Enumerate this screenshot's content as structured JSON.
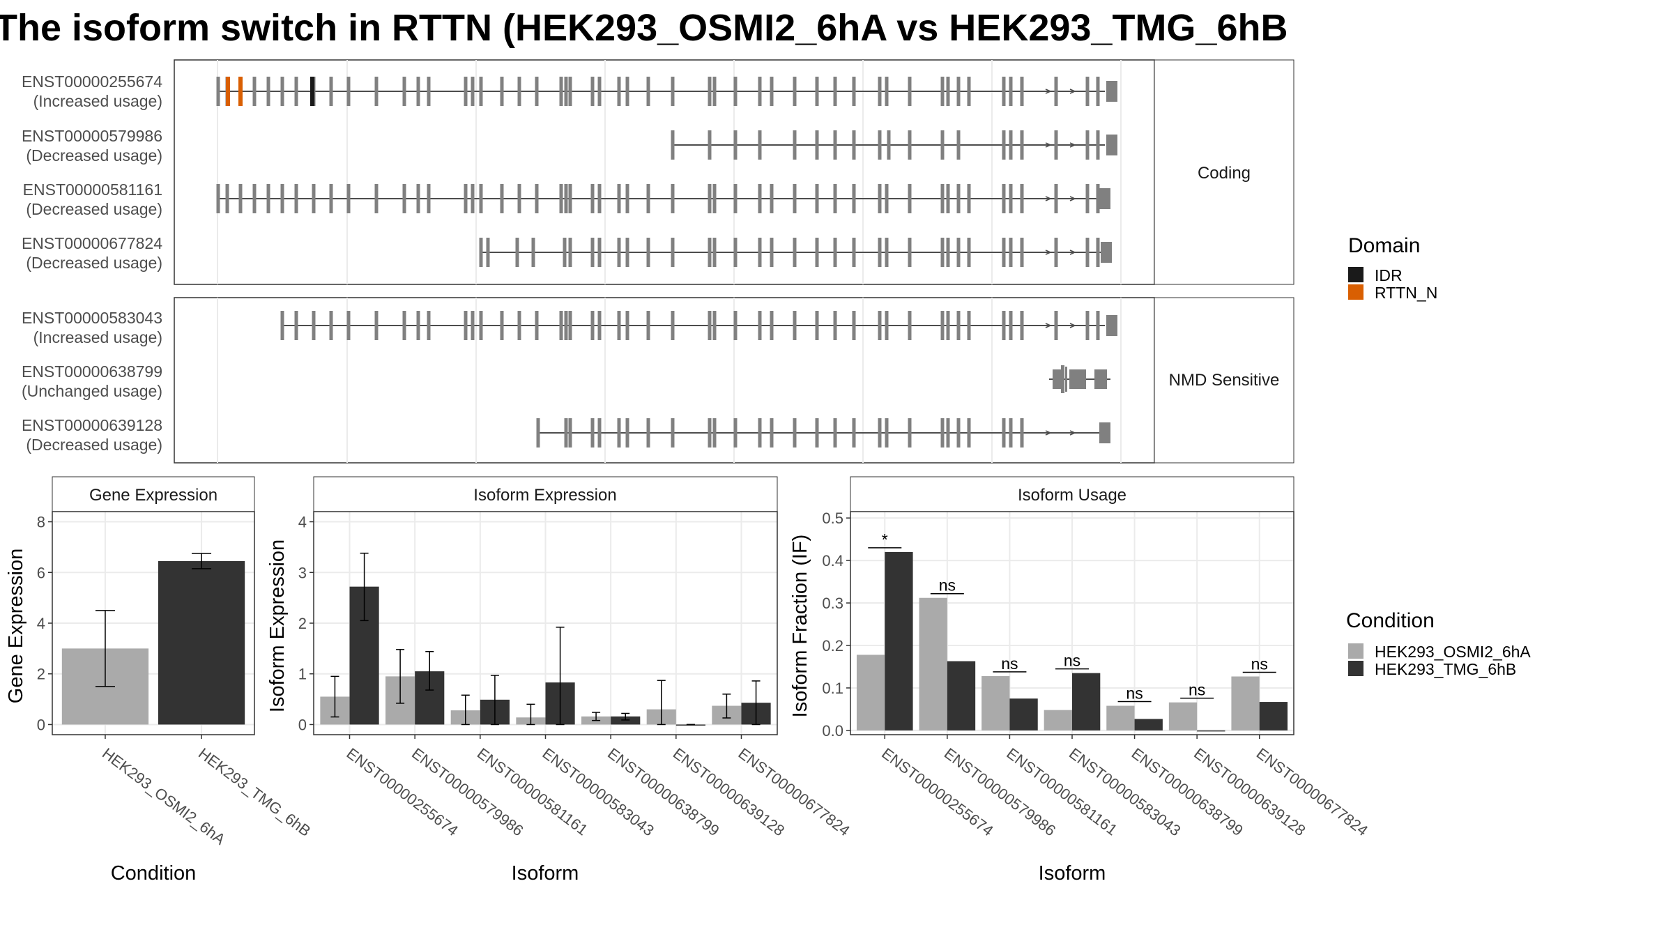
{
  "title": "The isoform switch in RTTN (HEK293_OSMI2_6hA vs HEK293_TMG_6hB",
  "colors": {
    "exon": "#808080",
    "intron": "#4d4d4d",
    "idr": "#1a1a1a",
    "rttn_n": "#d95f02",
    "cond1": "#aaaaaa",
    "cond2": "#333333",
    "panel_border": "#333333",
    "strip_bg": "#ffffff",
    "grid": "#ebebeb"
  },
  "legends": {
    "domain": {
      "title": "Domain",
      "items": [
        {
          "label": "IDR",
          "color": "#1a1a1a"
        },
        {
          "label": "RTTN_N",
          "color": "#d95f02"
        }
      ]
    },
    "condition": {
      "title": "Condition",
      "items": [
        {
          "label": "HEK293_OSMI2_6hA",
          "color": "#aaaaaa"
        },
        {
          "label": "HEK293_TMG_6hB",
          "color": "#333333"
        }
      ]
    }
  },
  "chart_data": [
    {
      "type": "gene-structure",
      "title": "The isoform switch in RTTN (HEK293_OSMI2_6hA vs HEK293_TMG_6hB",
      "groups": [
        {
          "label": "Coding",
          "transcripts": [
            {
              "id": "ENST00000255674",
              "usage": "(Increased usage)"
            },
            {
              "id": "ENST00000579986",
              "usage": "(Decreased usage)"
            },
            {
              "id": "ENST00000581161",
              "usage": "(Decreased usage)"
            },
            {
              "id": "ENST00000677824",
              "usage": "(Decreased usage)"
            }
          ]
        },
        {
          "label": "NMD Sensitive",
          "transcripts": [
            {
              "id": "ENST00000583043",
              "usage": "(Increased usage)"
            },
            {
              "id": "ENST00000638799",
              "usage": "(Unchanged usage)"
            },
            {
              "id": "ENST00000639128",
              "usage": "(Decreased usage)"
            }
          ]
        }
      ]
    },
    {
      "type": "bar",
      "title": "Gene Expression",
      "xlabel": "Condition",
      "ylabel": "Gene Expression",
      "categories": [
        "HEK293_OSMI2_6hA",
        "HEK293_TMG_6hB"
      ],
      "values": [
        3.0,
        6.45
      ],
      "error_low": [
        1.5,
        6.15
      ],
      "error_high": [
        4.5,
        6.75
      ],
      "ylim": [
        -0.4,
        8.4
      ],
      "yticks": [
        0,
        2,
        4,
        6,
        8
      ],
      "grid": true
    },
    {
      "type": "bar",
      "title": "Isoform Expression",
      "xlabel": "Isoform",
      "ylabel": "Isoform Expression",
      "categories": [
        "ENST00000255674",
        "ENST00000579986",
        "ENST00000581161",
        "ENST00000583043",
        "ENST00000638799",
        "ENST00000639128",
        "ENST00000677824"
      ],
      "series": [
        {
          "name": "HEK293_OSMI2_6hA",
          "values": [
            0.55,
            0.95,
            0.28,
            0.14,
            0.16,
            0.3,
            0.37
          ],
          "error_low": [
            0.15,
            0.42,
            0.0,
            0.0,
            0.08,
            0.0,
            0.13
          ],
          "error_high": [
            0.95,
            1.48,
            0.58,
            0.4,
            0.24,
            0.87,
            0.6
          ]
        },
        {
          "name": "HEK293_TMG_6hB",
          "values": [
            2.72,
            1.05,
            0.49,
            0.83,
            0.16,
            0.0,
            0.43
          ],
          "error_low": [
            2.05,
            0.68,
            0.0,
            0.0,
            0.09,
            0.0,
            0.0
          ],
          "error_high": [
            3.38,
            1.44,
            0.97,
            1.92,
            0.22,
            0.0,
            0.86
          ]
        }
      ],
      "ylim": [
        -0.2,
        4.2
      ],
      "yticks": [
        0,
        1,
        2,
        3,
        4
      ],
      "grid": true
    },
    {
      "type": "bar",
      "title": "Isoform Usage",
      "xlabel": "Isoform",
      "ylabel": "Isoform Fraction (IF)",
      "categories": [
        "ENST00000255674",
        "ENST00000579986",
        "ENST00000581161",
        "ENST00000583043",
        "ENST00000638799",
        "ENST00000639128",
        "ENST00000677824"
      ],
      "series": [
        {
          "name": "HEK293_OSMI2_6hA",
          "values": [
            0.178,
            0.312,
            0.128,
            0.048,
            0.058,
            0.066,
            0.127
          ]
        },
        {
          "name": "HEK293_TMG_6hB",
          "values": [
            0.42,
            0.163,
            0.075,
            0.135,
            0.027,
            0.0,
            0.067
          ]
        }
      ],
      "significance": [
        "*",
        "ns",
        "ns",
        "ns",
        "ns",
        "ns",
        "ns"
      ],
      "ylim": [
        -0.01,
        0.515
      ],
      "yticks": [
        0.0,
        0.1,
        0.2,
        0.3,
        0.4,
        0.5
      ],
      "ytick_labels": [
        "0.0",
        "0.1",
        "0.2",
        "0.3",
        "0.4",
        "0.5"
      ],
      "grid": true
    }
  ]
}
